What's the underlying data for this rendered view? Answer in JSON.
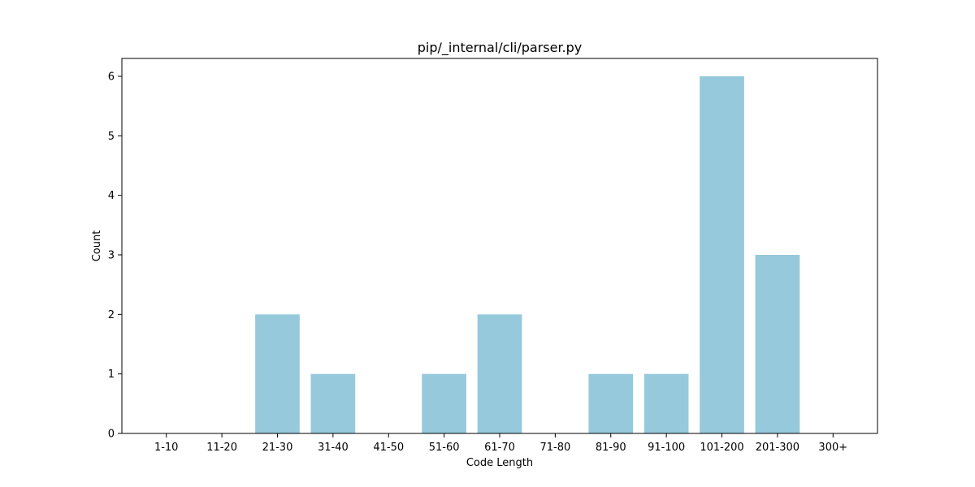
{
  "chart_data": {
    "type": "bar",
    "title": "pip/_internal/cli/parser.py",
    "xlabel": "Code Length",
    "ylabel": "Count",
    "categories": [
      "1-10",
      "11-20",
      "21-30",
      "31-40",
      "41-50",
      "51-60",
      "61-70",
      "71-80",
      "81-90",
      "91-100",
      "101-200",
      "201-300",
      "300+"
    ],
    "values": [
      0,
      0,
      2,
      1,
      0,
      1,
      2,
      0,
      1,
      1,
      6,
      3,
      0
    ],
    "ylim": [
      0,
      6.3
    ],
    "yticks": [
      0,
      1,
      2,
      3,
      4,
      5,
      6
    ],
    "bar_color": "#96c9dc",
    "grid": false,
    "legend": "none"
  }
}
